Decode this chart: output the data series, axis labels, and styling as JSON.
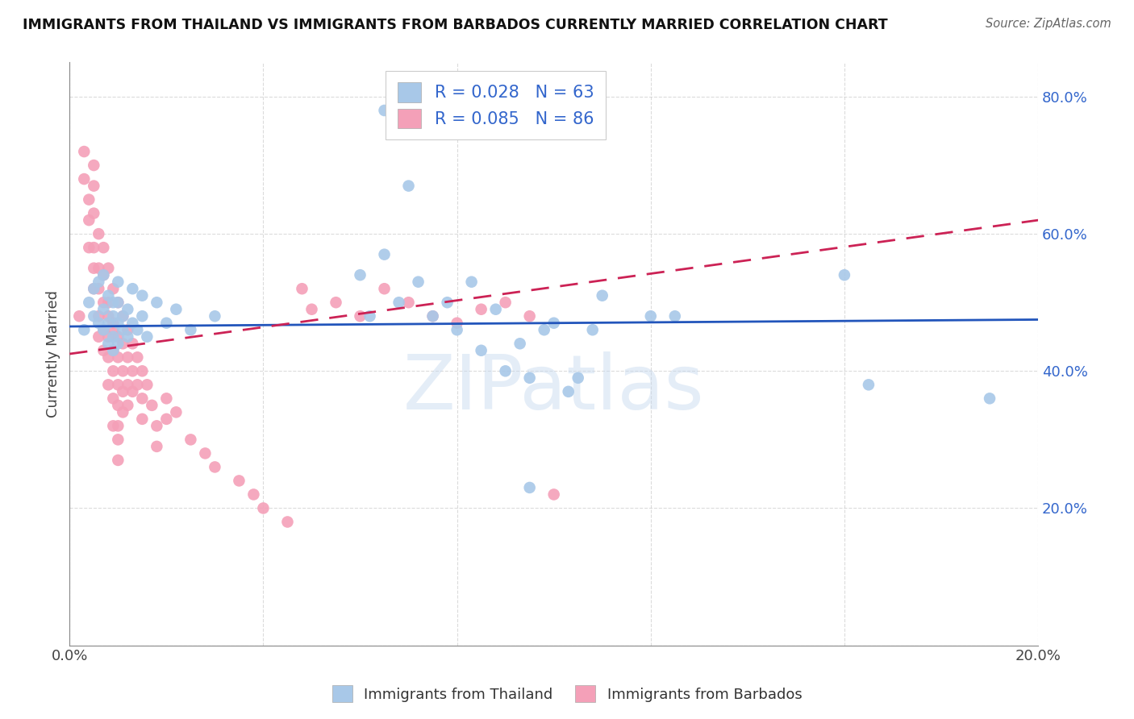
{
  "title": "IMMIGRANTS FROM THAILAND VS IMMIGRANTS FROM BARBADOS CURRENTLY MARRIED CORRELATION CHART",
  "source": "Source: ZipAtlas.com",
  "ylabel": "Currently Married",
  "xlim": [
    0.0,
    0.2
  ],
  "ylim": [
    0.0,
    0.85
  ],
  "thailand_color": "#a8c8e8",
  "barbados_color": "#f4a0b8",
  "thailand_line_color": "#2255bb",
  "barbados_line_color": "#cc2255",
  "R_thailand": 0.028,
  "N_thailand": 63,
  "R_barbados": 0.085,
  "N_barbados": 86,
  "legend_label_thailand": "Immigrants from Thailand",
  "legend_label_barbados": "Immigrants from Barbados",
  "watermark": "ZIPatlas",
  "background_color": "#ffffff",
  "grid_color": "#cccccc",
  "th_line_y0": 0.465,
  "th_line_y1": 0.475,
  "bar_line_y0": 0.425,
  "bar_line_y1": 0.62,
  "thailand_x": [
    0.003,
    0.004,
    0.005,
    0.005,
    0.006,
    0.006,
    0.007,
    0.007,
    0.007,
    0.008,
    0.008,
    0.008,
    0.009,
    0.009,
    0.009,
    0.009,
    0.01,
    0.01,
    0.01,
    0.01,
    0.011,
    0.011,
    0.012,
    0.012,
    0.013,
    0.013,
    0.014,
    0.015,
    0.015,
    0.016,
    0.018,
    0.02,
    0.022,
    0.025,
    0.03,
    0.06,
    0.062,
    0.065,
    0.068,
    0.07,
    0.072,
    0.075,
    0.078,
    0.08,
    0.083,
    0.085,
    0.088,
    0.09,
    0.093,
    0.095,
    0.098,
    0.1,
    0.103,
    0.105,
    0.108,
    0.11,
    0.12,
    0.125,
    0.16,
    0.165,
    0.19,
    0.065,
    0.095
  ],
  "thailand_y": [
    0.46,
    0.5,
    0.48,
    0.52,
    0.47,
    0.53,
    0.46,
    0.49,
    0.54,
    0.47,
    0.51,
    0.44,
    0.48,
    0.45,
    0.5,
    0.43,
    0.47,
    0.5,
    0.44,
    0.53,
    0.48,
    0.46,
    0.49,
    0.45,
    0.47,
    0.52,
    0.46,
    0.48,
    0.51,
    0.45,
    0.5,
    0.47,
    0.49,
    0.46,
    0.48,
    0.54,
    0.48,
    0.57,
    0.5,
    0.67,
    0.53,
    0.48,
    0.5,
    0.46,
    0.53,
    0.43,
    0.49,
    0.4,
    0.44,
    0.39,
    0.46,
    0.47,
    0.37,
    0.39,
    0.46,
    0.51,
    0.48,
    0.48,
    0.54,
    0.38,
    0.36,
    0.78,
    0.23
  ],
  "barbados_x": [
    0.002,
    0.003,
    0.003,
    0.004,
    0.004,
    0.004,
    0.005,
    0.005,
    0.005,
    0.005,
    0.005,
    0.005,
    0.006,
    0.006,
    0.006,
    0.006,
    0.006,
    0.007,
    0.007,
    0.007,
    0.007,
    0.007,
    0.008,
    0.008,
    0.008,
    0.008,
    0.008,
    0.008,
    0.009,
    0.009,
    0.009,
    0.009,
    0.009,
    0.009,
    0.009,
    0.01,
    0.01,
    0.01,
    0.01,
    0.01,
    0.01,
    0.01,
    0.01,
    0.011,
    0.011,
    0.011,
    0.011,
    0.011,
    0.012,
    0.012,
    0.012,
    0.012,
    0.013,
    0.013,
    0.013,
    0.014,
    0.014,
    0.015,
    0.015,
    0.015,
    0.016,
    0.017,
    0.018,
    0.018,
    0.02,
    0.02,
    0.022,
    0.025,
    0.028,
    0.03,
    0.035,
    0.038,
    0.04,
    0.045,
    0.048,
    0.05,
    0.055,
    0.06,
    0.065,
    0.07,
    0.075,
    0.08,
    0.085,
    0.09,
    0.095,
    0.1
  ],
  "barbados_y": [
    0.48,
    0.68,
    0.72,
    0.65,
    0.58,
    0.62,
    0.67,
    0.52,
    0.7,
    0.63,
    0.58,
    0.55,
    0.6,
    0.55,
    0.48,
    0.52,
    0.45,
    0.58,
    0.5,
    0.54,
    0.46,
    0.43,
    0.55,
    0.5,
    0.45,
    0.42,
    0.48,
    0.38,
    0.52,
    0.47,
    0.43,
    0.4,
    0.46,
    0.36,
    0.32,
    0.5,
    0.45,
    0.42,
    0.38,
    0.35,
    0.32,
    0.3,
    0.27,
    0.48,
    0.44,
    0.4,
    0.37,
    0.34,
    0.46,
    0.42,
    0.38,
    0.35,
    0.44,
    0.4,
    0.37,
    0.42,
    0.38,
    0.4,
    0.36,
    0.33,
    0.38,
    0.35,
    0.32,
    0.29,
    0.36,
    0.33,
    0.34,
    0.3,
    0.28,
    0.26,
    0.24,
    0.22,
    0.2,
    0.18,
    0.52,
    0.49,
    0.5,
    0.48,
    0.52,
    0.5,
    0.48,
    0.47,
    0.49,
    0.5,
    0.48,
    0.22
  ]
}
